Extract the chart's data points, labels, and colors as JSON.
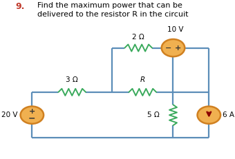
{
  "title_num": "9.",
  "title_text": "Find the maximum power that can be\ndelivered to the resistor R in the circuit",
  "wire_color": "#5b8db8",
  "resistor_color": "#3aaa5c",
  "source_fill": "#f0b050",
  "source_edge": "#d08020",
  "bg_color": "#ffffff",
  "text_color": "#000000",
  "title_num_color": "#c0392b",
  "arrow_color": "#8b0000",
  "labels": {
    "2ohm": "2 Ω",
    "3ohm": "3 Ω",
    "5ohm": "5 Ω",
    "R": "R",
    "10V": "10 V",
    "20V": "20 V",
    "6A": "6 A"
  },
  "layout": {
    "xL": 0.09,
    "xM": 0.47,
    "xR": 0.76,
    "xFR": 0.93,
    "yBot": 0.13,
    "yMid": 0.42,
    "yTop": 0.7,
    "src_r": 0.055
  }
}
